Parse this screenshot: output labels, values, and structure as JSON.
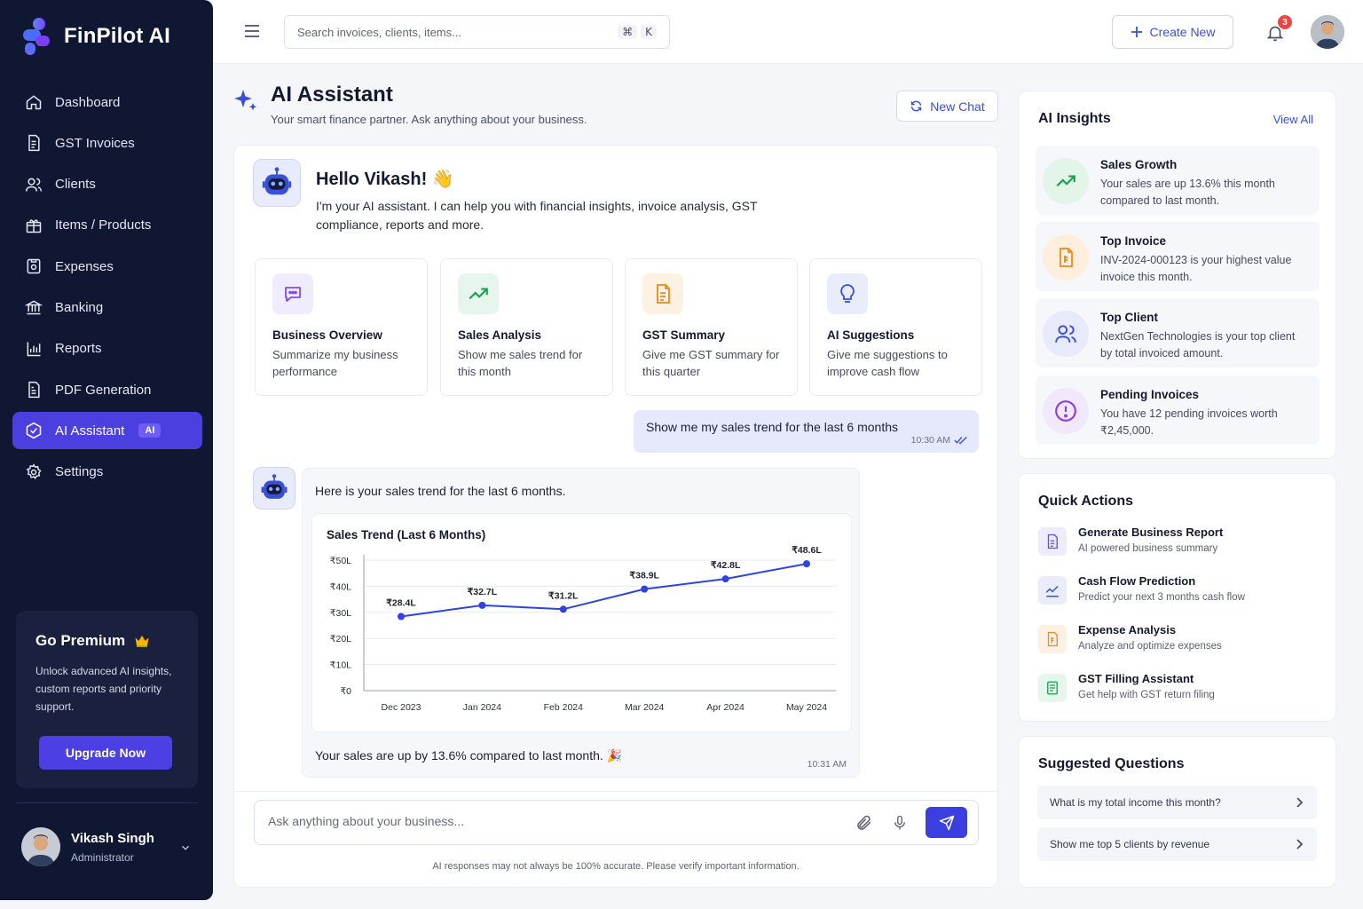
{
  "brand": {
    "name": "FinPilot AI"
  },
  "sidebar": {
    "items": [
      {
        "label": "Dashboard",
        "icon": "home-icon"
      },
      {
        "label": "GST Invoices",
        "icon": "invoice-icon"
      },
      {
        "label": "Clients",
        "icon": "users-icon"
      },
      {
        "label": "Items / Products",
        "icon": "box-icon"
      },
      {
        "label": "Expenses",
        "icon": "receipt-icon"
      },
      {
        "label": "Banking",
        "icon": "bank-icon"
      },
      {
        "label": "Reports",
        "icon": "chart-icon"
      },
      {
        "label": "PDF Generation",
        "icon": "pdf-icon"
      },
      {
        "label": "AI Assistant",
        "icon": "ai-icon",
        "badge": "AI",
        "active": true
      },
      {
        "label": "Settings",
        "icon": "gear-icon"
      }
    ],
    "premium": {
      "title": "Go Premium",
      "text": "Unlock advanced AI insights, custom reports and priority support.",
      "button": "Upgrade Now"
    },
    "user": {
      "name": "Vikash Singh",
      "role": "Administrator"
    }
  },
  "topbar": {
    "search_placeholder": "Search invoices, clients, items...",
    "shortcut_mod": "⌘",
    "shortcut_key": "K",
    "create_label": "Create New",
    "notification_count": "3"
  },
  "page": {
    "title": "AI Assistant",
    "subtitle": "Your smart finance partner. Ask anything about your business.",
    "new_chat": "New Chat"
  },
  "chat": {
    "greeting": "Hello Vikash! 👋",
    "intro": "I'm your AI assistant. I can help you with financial insights, invoice analysis, GST compliance, reports and more.",
    "suggestions": [
      {
        "title": "Business Overview",
        "desc": "Summarize my business performance",
        "icon": "chat-bubble-icon",
        "color": "#7c4dea",
        "bg": "#f1ecfd"
      },
      {
        "title": "Sales Analysis",
        "desc": "Show me sales trend for this month",
        "icon": "trend-up-icon",
        "color": "#16a34a",
        "bg": "#e7f6ec"
      },
      {
        "title": "GST Summary",
        "desc": "Give me GST summary for this quarter",
        "icon": "document-icon",
        "color": "#ea8a1a",
        "bg": "#fdf1e3"
      },
      {
        "title": "AI Suggestions",
        "desc": "Give me suggestions to improve cash flow",
        "icon": "lightbulb-icon",
        "color": "#3a4fd8",
        "bg": "#e8ecfb"
      }
    ],
    "user_message": {
      "text": "Show me my sales trend for the last 6 months",
      "time": "10:30 AM"
    },
    "bot_message": {
      "text": "Here is your sales trend for the last 6 months.",
      "footer": "Your sales are up by 13.6% compared to last month. 🎉",
      "time": "10:31 AM"
    },
    "input_placeholder": "Ask anything about your business...",
    "disclaimer": "AI responses may not always be 100% accurate. Please verify important information."
  },
  "chart_data": {
    "type": "line",
    "title": "Sales Trend (Last 6 Months)",
    "categories": [
      "Dec 2023",
      "Jan 2024",
      "Feb 2024",
      "Mar 2024",
      "Apr 2024",
      "May 2024"
    ],
    "values": [
      28.4,
      32.7,
      31.2,
      38.9,
      42.8,
      48.6
    ],
    "data_labels": [
      "₹28.4L",
      "₹32.7L",
      "₹31.2L",
      "₹38.9L",
      "₹42.8L",
      "₹48.6L"
    ],
    "yticks": [
      0,
      10,
      20,
      30,
      40,
      50
    ],
    "ytick_labels": [
      "₹0",
      "₹10L",
      "₹20L",
      "₹30L",
      "₹40L",
      "₹50L"
    ],
    "ylim": [
      0,
      50
    ],
    "grid": true,
    "color": "#2f43e0"
  },
  "insights": {
    "title": "AI Insights",
    "view_all": "View All",
    "items": [
      {
        "title": "Sales Growth",
        "desc": "Your sales are up 13.6% this month compared to last month.",
        "icon": "trend-up-icon",
        "color": "#16a34a",
        "bg": "#e3f4e9"
      },
      {
        "title": "Top Invoice",
        "desc": "INV-2024-000123 is your highest value invoice this month.",
        "icon": "invoice-icon",
        "color": "#ea8a1a",
        "bg": "#fdeedd"
      },
      {
        "title": "Top Client",
        "desc": "NextGen Technologies is your top client by total invoiced amount.",
        "icon": "users-icon",
        "color": "#3a4fd8",
        "bg": "#e6eafb"
      },
      {
        "title": "Pending Invoices",
        "desc": "You have 12 pending invoices worth ₹2,45,000.",
        "icon": "alert-icon",
        "color": "#8b3fe0",
        "bg": "#f1e8fd"
      }
    ]
  },
  "quick_actions": {
    "title": "Quick Actions",
    "items": [
      {
        "title": "Generate Business Report",
        "desc": "AI powered business summary",
        "icon": "report-icon",
        "color": "#5b4fe0",
        "bg": "#eeecfc"
      },
      {
        "title": "Cash Flow Prediction",
        "desc": "Predict your next 3 months cash flow",
        "icon": "trend-icon",
        "color": "#3a4fd8",
        "bg": "#e8ecfb"
      },
      {
        "title": "Expense Analysis",
        "desc": "Analyze and optimize expenses",
        "icon": "expense-icon",
        "color": "#ea8a1a",
        "bg": "#fdf1e3"
      },
      {
        "title": "GST Filling Assistant",
        "desc": "Get help with GST return filing",
        "icon": "gst-icon",
        "color": "#16a34a",
        "bg": "#e7f6ec"
      }
    ]
  },
  "suggested_questions": {
    "title": "Suggested Questions",
    "items": [
      "What is my total income this month?",
      "Show me top 5 clients by revenue"
    ]
  }
}
